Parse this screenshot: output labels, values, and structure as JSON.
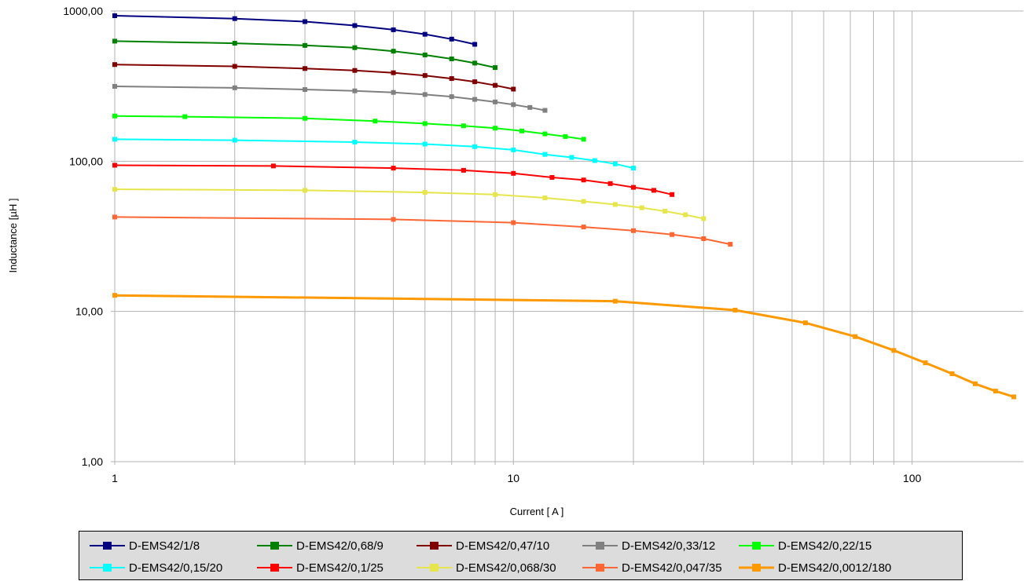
{
  "chart_data": {
    "type": "line",
    "title": "",
    "xlabel": "Current [ A ]",
    "ylabel": "Inductance [µH ]",
    "x_scale": "log",
    "y_scale": "log",
    "xlim": [
      1,
      190
    ],
    "ylim": [
      1,
      1000
    ],
    "x_tick_labels": [
      {
        "value": 1,
        "label": "1"
      },
      {
        "value": 10,
        "label": "10"
      },
      {
        "value": 100,
        "label": "100"
      }
    ],
    "y_tick_labels": [
      {
        "value": 1,
        "label": "1,00"
      },
      {
        "value": 10,
        "label": "10,00"
      },
      {
        "value": 100,
        "label": "100,00"
      },
      {
        "value": 1000,
        "label": "1000,00"
      }
    ],
    "grid": true,
    "legend_position": "bottom",
    "series": [
      {
        "name": "D-EMS42/1/8",
        "color": "#000080",
        "points": [
          [
            1,
            930
          ],
          [
            2,
            890
          ],
          [
            3,
            850
          ],
          [
            4,
            800
          ],
          [
            5,
            750
          ],
          [
            6,
            700
          ],
          [
            7,
            650
          ],
          [
            8,
            600
          ]
        ]
      },
      {
        "name": "D-EMS42/0,68/9",
        "color": "#008000",
        "points": [
          [
            1,
            630
          ],
          [
            2,
            610
          ],
          [
            3,
            590
          ],
          [
            4,
            570
          ],
          [
            5,
            540
          ],
          [
            6,
            510
          ],
          [
            7,
            480
          ],
          [
            8,
            450
          ],
          [
            9,
            420
          ]
        ]
      },
      {
        "name": "D-EMS42/0,47/10",
        "color": "#800000",
        "points": [
          [
            1,
            440
          ],
          [
            2,
            428
          ],
          [
            3,
            414
          ],
          [
            4,
            402
          ],
          [
            5,
            388
          ],
          [
            6,
            372
          ],
          [
            7,
            355
          ],
          [
            8,
            338
          ],
          [
            9,
            320
          ],
          [
            10,
            302
          ]
        ]
      },
      {
        "name": "D-EMS42/0,33/12",
        "color": "#808080",
        "points": [
          [
            1,
            315
          ],
          [
            2,
            308
          ],
          [
            3,
            300
          ],
          [
            4,
            294
          ],
          [
            5,
            287
          ],
          [
            6,
            278
          ],
          [
            7,
            269
          ],
          [
            8,
            258
          ],
          [
            9,
            248
          ],
          [
            10,
            238
          ],
          [
            11,
            228
          ],
          [
            12,
            218
          ]
        ]
      },
      {
        "name": "D-EMS42/0,22/15",
        "color": "#00ff00",
        "points": [
          [
            1,
            200
          ],
          [
            1.5,
            198
          ],
          [
            3,
            193
          ],
          [
            4.5,
            185
          ],
          [
            6,
            178
          ],
          [
            7.5,
            172
          ],
          [
            9,
            166
          ],
          [
            10.5,
            159
          ],
          [
            12,
            152
          ],
          [
            13.5,
            146
          ],
          [
            15,
            140
          ]
        ]
      },
      {
        "name": "D-EMS42/0,15/20",
        "color": "#00ffff",
        "points": [
          [
            1,
            140
          ],
          [
            2,
            138
          ],
          [
            4,
            134
          ],
          [
            6,
            130
          ],
          [
            8,
            125
          ],
          [
            10,
            119
          ],
          [
            12,
            111
          ],
          [
            14,
            106
          ],
          [
            16,
            101
          ],
          [
            18,
            96
          ],
          [
            20,
            90
          ]
        ]
      },
      {
        "name": "D-EMS42/0,1/25",
        "color": "#ff0000",
        "points": [
          [
            1,
            94
          ],
          [
            2.5,
            93
          ],
          [
            5,
            90
          ],
          [
            7.5,
            87
          ],
          [
            10,
            83
          ],
          [
            12.5,
            78
          ],
          [
            15,
            75
          ],
          [
            17.5,
            71
          ],
          [
            20,
            67
          ],
          [
            22.5,
            64
          ],
          [
            25,
            60
          ]
        ]
      },
      {
        "name": "D-EMS42/0,068/30",
        "color": "#e6e64c",
        "points": [
          [
            1,
            65
          ],
          [
            3,
            64
          ],
          [
            6,
            62
          ],
          [
            9,
            60
          ],
          [
            12,
            57
          ],
          [
            15,
            54
          ],
          [
            18,
            51.5
          ],
          [
            21,
            49
          ],
          [
            24,
            46.5
          ],
          [
            27,
            44
          ],
          [
            30,
            41.5
          ]
        ]
      },
      {
        "name": "D-EMS42/0,047/35",
        "color": "#ff6633",
        "points": [
          [
            1,
            42.5
          ],
          [
            5,
            41
          ],
          [
            10,
            39
          ],
          [
            15,
            36.5
          ],
          [
            20,
            34.5
          ],
          [
            25,
            32.5
          ],
          [
            30,
            30.5
          ],
          [
            35,
            28
          ]
        ]
      },
      {
        "name": "D-EMS42/0,0012/180",
        "color": "#ff9900",
        "points": [
          [
            1,
            12.8
          ],
          [
            18,
            11.7
          ],
          [
            36,
            10.2
          ],
          [
            54,
            8.4
          ],
          [
            72,
            6.8
          ],
          [
            90,
            5.5
          ],
          [
            108,
            4.55
          ],
          [
            126,
            3.85
          ],
          [
            144,
            3.3
          ],
          [
            162,
            2.95
          ],
          [
            180,
            2.7
          ]
        ]
      }
    ]
  }
}
